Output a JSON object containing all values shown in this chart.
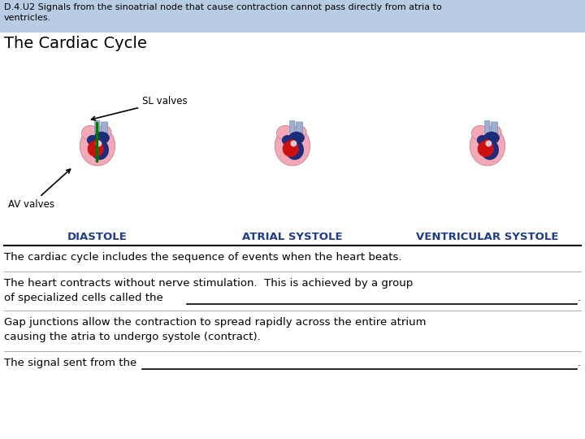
{
  "header_text": "D.4.U2 Signals from the sinoatrial node that cause contraction cannot pass directly from atria to\nventricles.",
  "header_bg": "#b8cce4",
  "title": "The Cardiac Cycle",
  "title_fontsize": 14,
  "labels": [
    "DIASTOLE",
    "ATRIAL SYSTOLE",
    "VENTRICULAR SYSTOLE"
  ],
  "label_color": "#1F3B8C",
  "label_fontsize": 9.5,
  "sl_valves_label": "SL valves",
  "av_valves_label": "AV valves",
  "paragraph1": "The cardiac cycle includes the sequence of events when the heart beats.",
  "paragraph2_line1": "The heart contracts without nerve stimulation.  This is achieved by a group",
  "paragraph2_line2": "of specialized cells called the",
  "paragraph3_line1": "Gap junctions allow the contraction to spread rapidly across the entire atrium",
  "paragraph3_line2": "causing the atria to undergo systole (contract).",
  "paragraph4_line1": "The signal sent from the",
  "bg_color": "#ffffff",
  "text_color": "#000000",
  "divider_color": "#000000",
  "font_family": "DejaVu Sans",
  "heart_pink": "#F4A8B8",
  "heart_blue": "#1A2E7A",
  "heart_red": "#CC1111",
  "heart_lightblue": "#9BB0D0",
  "heart_lightpink": "#E8C8D0",
  "arrow_green": "#007700"
}
